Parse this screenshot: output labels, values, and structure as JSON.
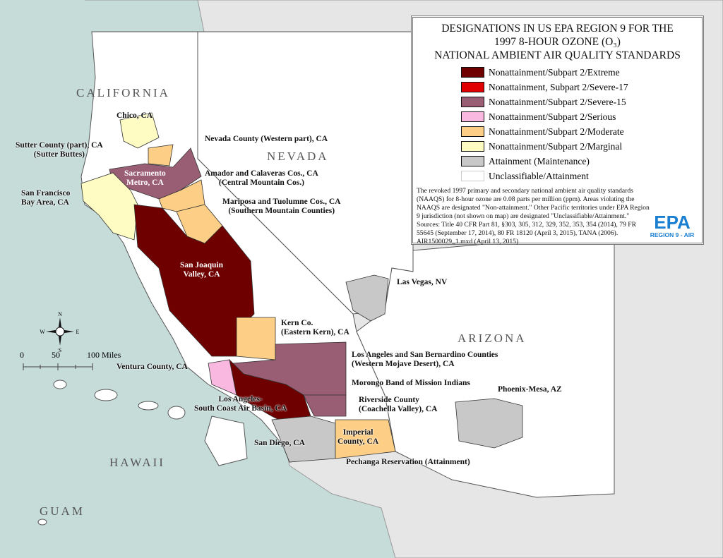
{
  "title": [
    "DESIGNATIONS IN US EPA REGION 9 FOR THE",
    "1997 8-HOUR OZONE (O₃)",
    "NATIONAL AMBIENT AIR QUALITY STANDARDS"
  ],
  "legend": [
    {
      "label": "Nonattainment/Subpart 2/Extreme",
      "color": "#6e0000"
    },
    {
      "label": "Nonattainment, Subpart 2/Severe-17",
      "color": "#e00000"
    },
    {
      "label": "Nonattainment/Subpart 2/Severe-15",
      "color": "#9a5e74"
    },
    {
      "label": "Nonattainment/Subpart 2/Serious",
      "color": "#f9b8e0"
    },
    {
      "label": "Nonattainment/Subpart 2/Moderate",
      "color": "#fdcf86"
    },
    {
      "label": "Nonattainment/Subpart 2/Marginal",
      "color": "#fefcc3"
    },
    {
      "label": "Attainment (Maintenance)",
      "color": "#c8c8c8"
    },
    {
      "label": "Unclassifiable/Attainment",
      "color": "#ffffff"
    }
  ],
  "notes": "The revoked 1997 primary and secondary national ambient air quality standards (NAAQS) for 8-hour ozone are 0.08 parts per million (ppm). Areas violating the NAAQS are designated \"Non-attainment.\" Other Pacific territories under EPA Region 9 jurisdiction (not shown on map) are designated \"Unclassifiable/Attainment.\"",
  "sources": "Sources: Title 40 CFR Part 81, §303, 305, 312, 329, 352, 353, 354 (2014), 79 FR 55645 (September 17, 2014), 80 FR 18120 (April 3, 2015), TANA (2006).",
  "file": "AIR1500029_1.mxd (April 13, 2015)",
  "logo": {
    "text": "EPA",
    "sub": "REGION 9 - AIR"
  },
  "states": {
    "ca": "CALIFORNIA",
    "nv": "NEVADA",
    "az": "ARIZONA",
    "hi": "HAWAII",
    "gu": "GUAM"
  },
  "compass": {
    "n": "N",
    "s": "S",
    "e": "E",
    "w": "W"
  },
  "scale": {
    "t0": "0",
    "t1": "50",
    "t2": "100 Miles"
  },
  "areas": {
    "chico": "Chico, CA",
    "sutter": "Sutter County (part), CA\n(Sutter Buttes)",
    "nevada": "Nevada County (Western part), CA",
    "sac": "Sacramento\nMetro, CA",
    "amador": "Amador and Calaveras Cos., CA\n(Central Mountain Cos.)",
    "sf": "San Francisco\nBay Area, CA",
    "mariposa": "Mariposa and Tuolumne Cos., CA\n(Southern Mountain Counties)",
    "sjv": "San Joaquin\nValley, CA",
    "lv": "Las Vegas, NV",
    "kern": "Kern Co.\n(Eastern Kern), CA",
    "ventura": "Ventura County, CA",
    "mojave": "Los Angeles and San Bernardino Counties\n(Western Mojave Desert), CA",
    "morongo": "Morongo Band of Mission Indians",
    "la": "Los Angeles-\nSouth Coast Air Basin, CA",
    "riverside": "Riverside County\n(Coachella Valley), CA",
    "phoenix": "Phoenix-Mesa, AZ",
    "sd": "San Diego, CA",
    "imperial": "Imperial\nCounty, CA",
    "pechanga": "Pechanga Reservation (Attainment)"
  },
  "colors": {
    "ocean": "#c6dcd9",
    "neighbor": "#e6e6e6",
    "border": "#555555"
  }
}
